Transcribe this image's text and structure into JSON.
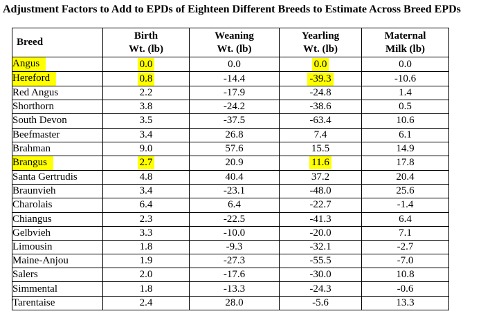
{
  "title": "Adjustment Factors to Add to EPDs of Eighteen Different Breeds to Estimate Across Breed EPDs",
  "highlight_color": "#ffff00",
  "table": {
    "headers": [
      {
        "label": "Breed"
      },
      {
        "line1": "Birth",
        "line2": "Wt. (lb)"
      },
      {
        "line1": "Weaning",
        "line2": "Wt. (lb)"
      },
      {
        "line1": "Yearling",
        "line2": "Wt. (lb)"
      },
      {
        "line1": "Maternal",
        "line2": "Milk (lb)"
      }
    ],
    "rows": [
      {
        "breed": "Angus",
        "birth": "0.0",
        "weaning": "0.0",
        "yearling": "0.0",
        "milk": "0.0",
        "highlights": [
          "breed",
          "birth",
          "yearling"
        ]
      },
      {
        "breed": "Hereford",
        "birth": "0.8",
        "weaning": "-14.4",
        "yearling": "-39.3",
        "milk": "-10.6",
        "highlights": [
          "breed",
          "birth",
          "yearling"
        ]
      },
      {
        "breed": "Red Angus",
        "birth": "2.2",
        "weaning": "-17.9",
        "yearling": "-24.8",
        "milk": "1.4",
        "highlights": []
      },
      {
        "breed": "Shorthorn",
        "birth": "3.8",
        "weaning": "-24.2",
        "yearling": "-38.6",
        "milk": "0.5",
        "highlights": []
      },
      {
        "breed": "South Devon",
        "birth": "3.5",
        "weaning": "-37.5",
        "yearling": "-63.4",
        "milk": "10.6",
        "highlights": []
      },
      {
        "breed": "Beefmaster",
        "birth": "3.4",
        "weaning": "26.8",
        "yearling": "7.4",
        "milk": "6.1",
        "highlights": []
      },
      {
        "breed": "Brahman",
        "birth": "9.0",
        "weaning": "57.6",
        "yearling": "15.5",
        "milk": "14.9",
        "highlights": []
      },
      {
        "breed": "Brangus",
        "birth": "2.7",
        "weaning": "20.9",
        "yearling": "11.6",
        "milk": "17.8",
        "highlights": [
          "breed",
          "birth",
          "yearling"
        ]
      },
      {
        "breed": "Santa Gertrudis",
        "birth": "4.8",
        "weaning": "40.4",
        "yearling": "37.2",
        "milk": "20.4",
        "highlights": []
      },
      {
        "breed": "Braunvieh",
        "birth": "3.4",
        "weaning": "-23.1",
        "yearling": "-48.0",
        "milk": "25.6",
        "highlights": []
      },
      {
        "breed": "Charolais",
        "birth": "6.4",
        "weaning": "6.4",
        "yearling": "-22.7",
        "milk": "-1.4",
        "highlights": []
      },
      {
        "breed": "Chiangus",
        "birth": "2.3",
        "weaning": "-22.5",
        "yearling": "-41.3",
        "milk": "6.4",
        "highlights": []
      },
      {
        "breed": "Gelbvieh",
        "birth": "3.3",
        "weaning": "-10.0",
        "yearling": "-20.0",
        "milk": "7.1",
        "highlights": []
      },
      {
        "breed": "Limousin",
        "birth": "1.8",
        "weaning": "-9.3",
        "yearling": "-32.1",
        "milk": "-2.7",
        "highlights": []
      },
      {
        "breed": "Maine-Anjou",
        "birth": "1.9",
        "weaning": "-27.3",
        "yearling": "-55.5",
        "milk": "-7.0",
        "highlights": []
      },
      {
        "breed": "Salers",
        "birth": "2.0",
        "weaning": "-17.6",
        "yearling": "-30.0",
        "milk": "10.8",
        "highlights": []
      },
      {
        "breed": "Simmental",
        "birth": "1.8",
        "weaning": "-13.3",
        "yearling": "-24.3",
        "milk": "-0.6",
        "highlights": []
      },
      {
        "breed": "Tarentaise",
        "birth": "2.4",
        "weaning": "28.0",
        "yearling": "-5.6",
        "milk": "13.3",
        "highlights": []
      }
    ]
  }
}
